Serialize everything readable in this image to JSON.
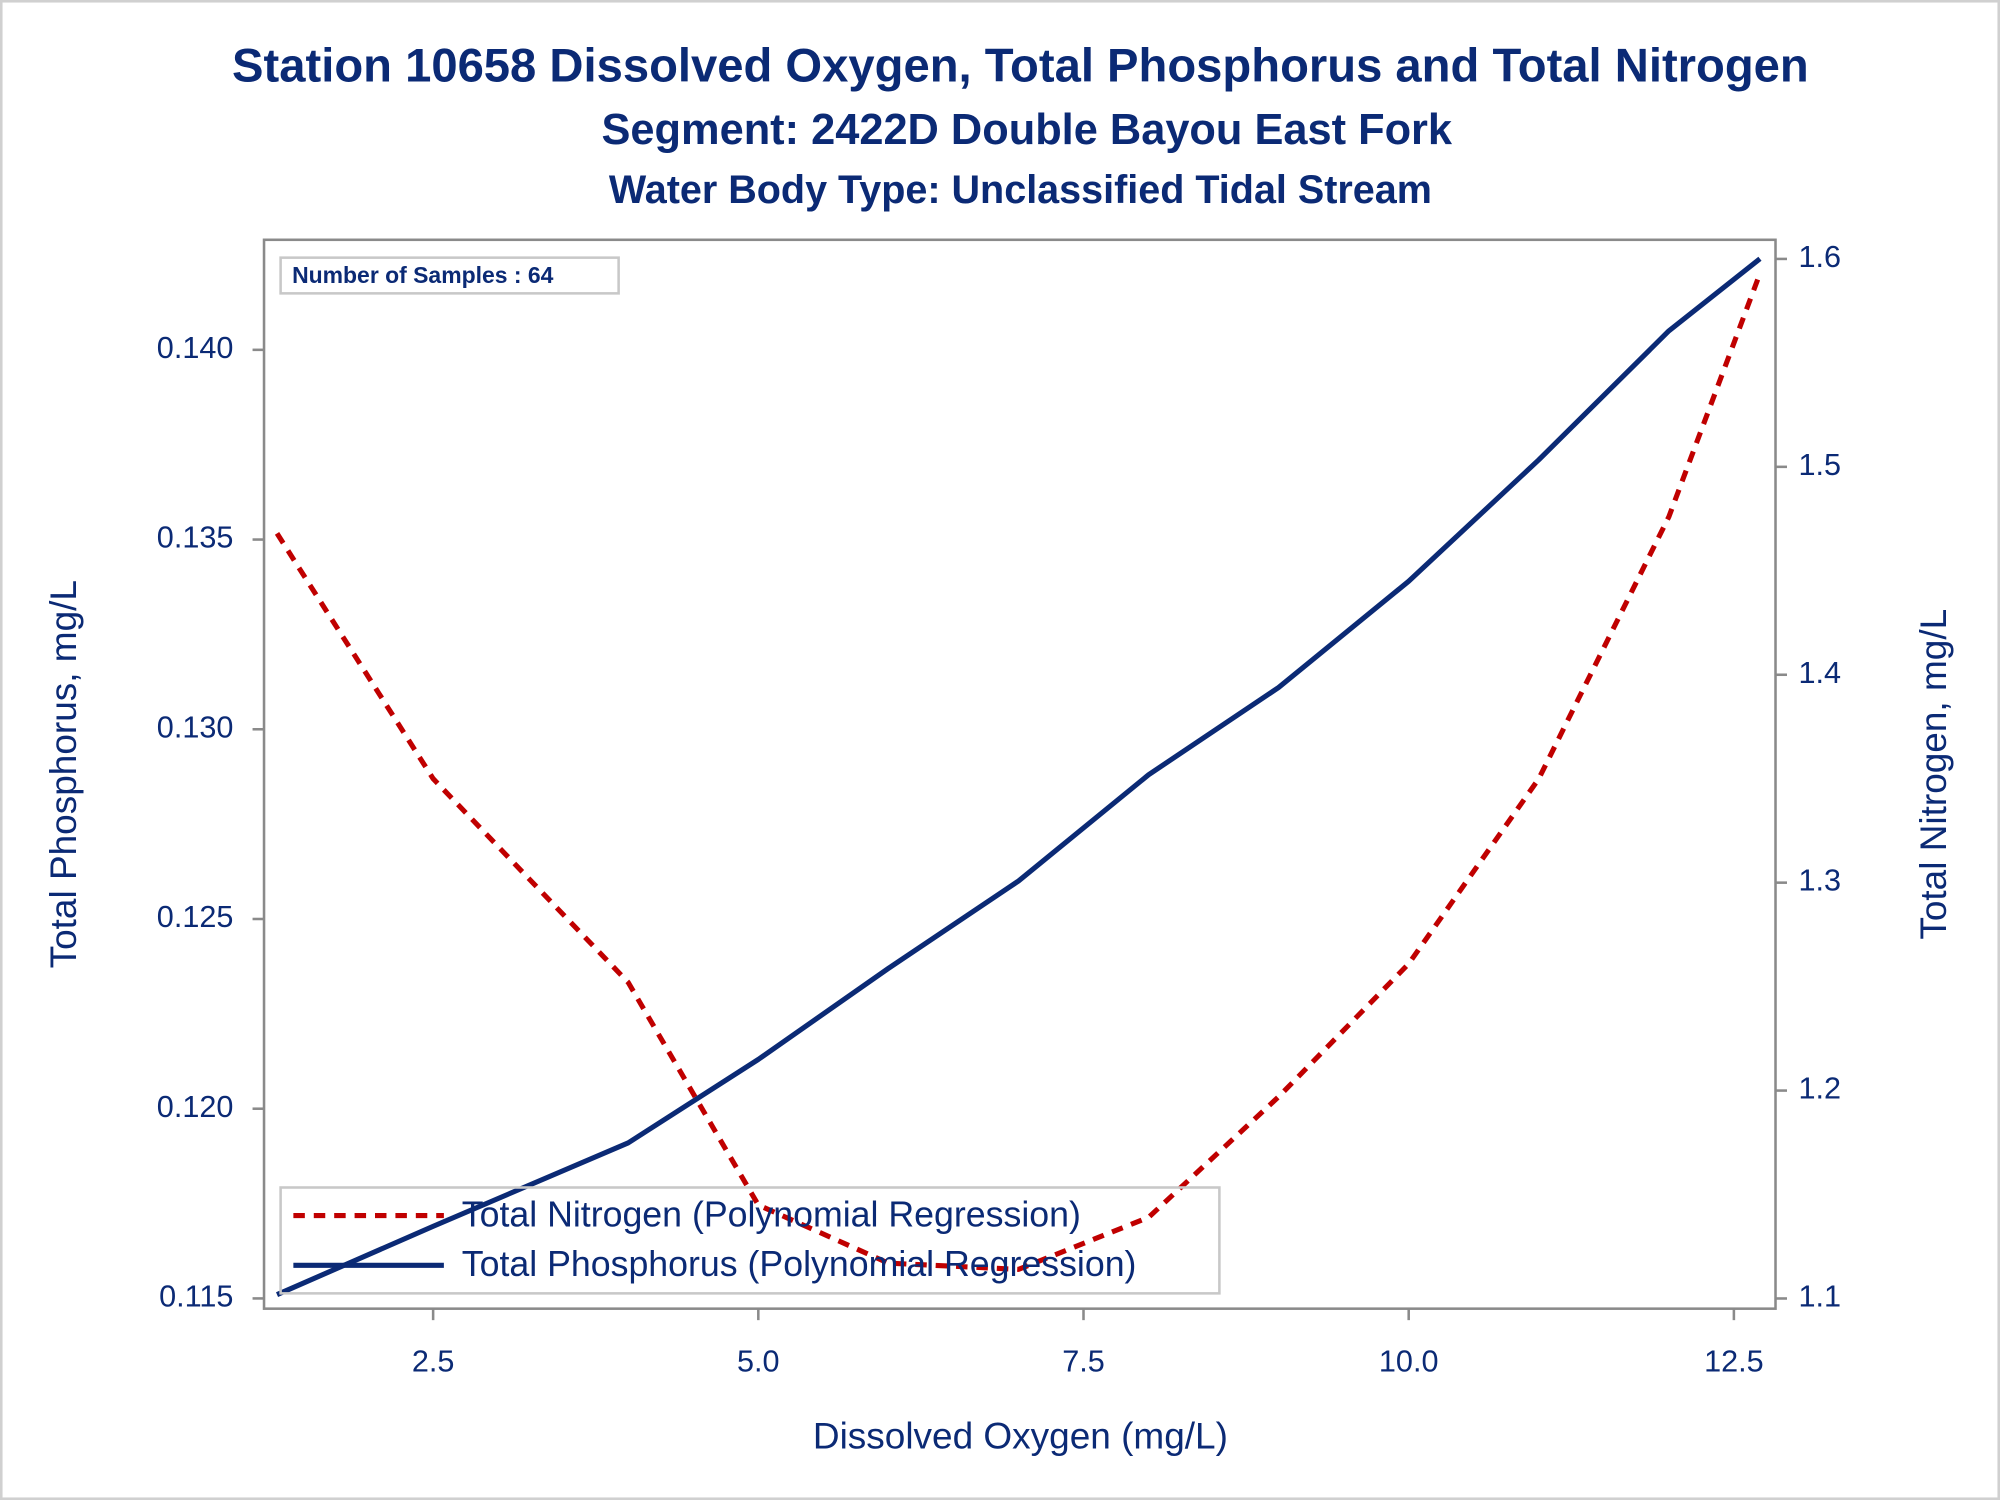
{
  "chart_data": {
    "type": "line",
    "title": "Station 10658  Dissolved Oxygen, Total Phosphorus and Total Nitrogen",
    "subtitles": [
      "Segment: 2422D  Double Bayou East Fork",
      "Water Body Type: Unclassified Tidal Stream"
    ],
    "annotation": "Number of Samples : 64",
    "x_label": "Dissolved Oxygen (mg/L)",
    "y_label": "Total Phosphorus, mg/L",
    "y2_label": "Total Nitrogen, mg/L",
    "x": [
      1.3,
      2.5,
      4,
      5,
      6,
      7,
      8,
      9,
      10,
      11,
      12,
      12.7
    ],
    "series": [
      {
        "name": "Total Nitrogen (Polynomial Regression)",
        "color": "#c00000",
        "line_style": "dashed",
        "axis": "y2",
        "values": [
          1.468,
          1.35,
          1.252,
          1.145,
          1.117,
          1.114,
          1.139,
          1.197,
          1.261,
          1.35,
          1.476,
          1.593
        ]
      },
      {
        "name": "Total Phosphorus (Polynomial Regression)",
        "color": "#0b2a75",
        "line_style": "solid",
        "axis": "y",
        "values": [
          0.1151,
          0.1169,
          0.1191,
          0.1213,
          0.1237,
          0.126,
          0.1288,
          0.1311,
          0.1339,
          0.1371,
          0.1405,
          0.1424
        ]
      }
    ],
    "xlim": [
      1.2,
      12.82
    ],
    "xticks": [
      2.5,
      {
        "value": 5,
        "label": "5.0"
      },
      7.5,
      {
        "value": 10,
        "label": "10.0"
      },
      12.5
    ],
    "ylim": [
      0.11473,
      0.1429
    ],
    "yticks": [
      0.115,
      {
        "value": 0.12,
        "label": "0.120"
      },
      0.125,
      {
        "value": 0.13,
        "label": "0.130"
      },
      0.135,
      {
        "value": 0.14,
        "label": "0.140"
      }
    ],
    "y2lim": [
      1.0951,
      1.6092
    ],
    "y2ticks": [
      1.1,
      1.2,
      1.3,
      1.4,
      1.5,
      1.6
    ],
    "legend": "lower left"
  }
}
